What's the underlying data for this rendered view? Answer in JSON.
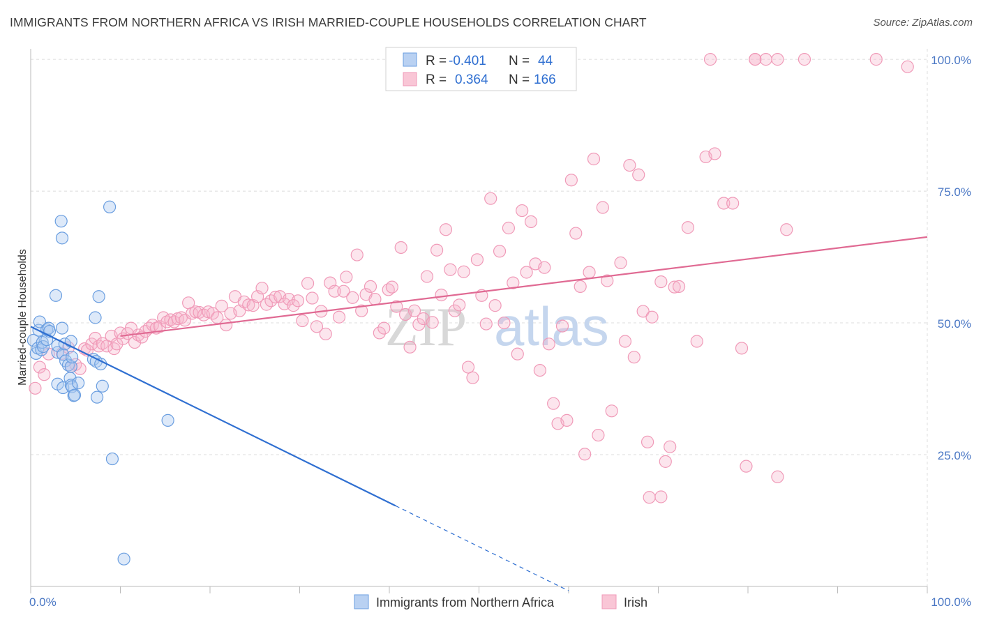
{
  "title": "IMMIGRANTS FROM NORTHERN AFRICA VS IRISH MARRIED-COUPLE HOUSEHOLDS CORRELATION CHART",
  "source": "Source: ZipAtlas.com",
  "watermark": {
    "zip": "ZIP",
    "atlas": "atlas"
  },
  "colors": {
    "blue": "#6a9ee0",
    "blue_line": "#2f6fd1",
    "pink": "#f09ab8",
    "pink_line": "#e06a93",
    "tick": "#4a77c4"
  },
  "stats": [
    {
      "r_label": "R =",
      "r_value": "-0.401",
      "n_label": "N =",
      "n_value": "44"
    },
    {
      "r_label": "R =",
      "r_value": "0.364",
      "n_label": "N =",
      "n_value": "166"
    }
  ],
  "chart_data": {
    "type": "scatter",
    "title": "IMMIGRANTS FROM NORTHERN AFRICA VS IRISH MARRIED-COUPLE HOUSEHOLDS CORRELATION CHART",
    "xlabel": "",
    "ylabel": "Married-couple Households",
    "xlim": [
      0,
      100
    ],
    "ylim": [
      0,
      102
    ],
    "x_tick_labels": [
      "0.0%",
      "100.0%"
    ],
    "y_ticks": [
      25,
      50,
      75,
      100
    ],
    "y_tick_labels": [
      "25.0%",
      "50.0%",
      "75.0%",
      "100.0%"
    ],
    "grid": true,
    "legend_position": "bottom",
    "series": [
      {
        "name": "Immigrants from Northern Africa",
        "color": "#6a9ee0",
        "trend": {
          "x0": 0,
          "y0": 49.3,
          "x1": 40.7,
          "y1": 15.3,
          "dashed_to_x": 60
        },
        "points": [
          [
            0.3,
            46.7
          ],
          [
            0.6,
            44.2
          ],
          [
            0.8,
            45.2
          ],
          [
            0.9,
            48.6
          ],
          [
            1.0,
            50.2
          ],
          [
            1.2,
            44.9
          ],
          [
            1.3,
            46.3
          ],
          [
            1.4,
            45.5
          ],
          [
            1.8,
            46.8
          ],
          [
            1.8,
            48.7
          ],
          [
            2.0,
            49.0
          ],
          [
            2.1,
            48.4
          ],
          [
            2.8,
            55.2
          ],
          [
            3.0,
            38.4
          ],
          [
            3.0,
            44.4
          ],
          [
            3.0,
            45.7
          ],
          [
            3.5,
            49.0
          ],
          [
            3.6,
            37.7
          ],
          [
            3.6,
            44.0
          ],
          [
            3.8,
            46.0
          ],
          [
            3.9,
            42.8
          ],
          [
            3.4,
            69.3
          ],
          [
            3.5,
            66.1
          ],
          [
            4.2,
            42.0
          ],
          [
            4.4,
            39.5
          ],
          [
            4.5,
            38.2
          ],
          [
            4.5,
            41.7
          ],
          [
            4.5,
            46.5
          ],
          [
            4.6,
            37.9
          ],
          [
            4.6,
            43.5
          ],
          [
            4.8,
            36.2
          ],
          [
            4.9,
            36.3
          ],
          [
            5.3,
            38.6
          ],
          [
            7.0,
            43.1
          ],
          [
            7.2,
            51.0
          ],
          [
            7.3,
            42.7
          ],
          [
            7.4,
            35.9
          ],
          [
            7.6,
            55.0
          ],
          [
            7.8,
            42.2
          ],
          [
            8.0,
            38.0
          ],
          [
            8.8,
            72.0
          ],
          [
            9.1,
            24.2
          ],
          [
            10.4,
            5.2
          ],
          [
            15.3,
            31.5
          ]
        ],
        "trend_note": ""
      },
      {
        "name": "Irish",
        "color": "#f09ab8",
        "trend": {
          "x0": 10,
          "y0": 47.5,
          "x1": 100,
          "y1": 66.3
        },
        "points": [
          [
            0.5,
            37.6
          ],
          [
            1.0,
            41.6
          ],
          [
            1.5,
            40.2
          ],
          [
            2.0,
            44.1
          ],
          [
            3.5,
            44.2
          ],
          [
            4.2,
            45.3
          ],
          [
            4.5,
            41.7
          ],
          [
            5.0,
            42.1
          ],
          [
            5.5,
            41.3
          ],
          [
            6.0,
            45.1
          ],
          [
            6.3,
            44.8
          ],
          [
            6.8,
            46.0
          ],
          [
            7.2,
            47.1
          ],
          [
            7.6,
            45.6
          ],
          [
            8.0,
            46.1
          ],
          [
            8.5,
            45.6
          ],
          [
            9.0,
            47.5
          ],
          [
            9.3,
            45.1
          ],
          [
            9.6,
            46.0
          ],
          [
            10.0,
            48.1
          ],
          [
            10.3,
            47.0
          ],
          [
            10.8,
            48.0
          ],
          [
            11.2,
            49.0
          ],
          [
            11.6,
            46.3
          ],
          [
            12.0,
            47.7
          ],
          [
            12.4,
            47.3
          ],
          [
            12.8,
            48.4
          ],
          [
            13.2,
            49.0
          ],
          [
            13.6,
            49.6
          ],
          [
            14.0,
            49.0
          ],
          [
            14.4,
            49.3
          ],
          [
            14.8,
            51.0
          ],
          [
            15.2,
            50.2
          ],
          [
            15.6,
            50.6
          ],
          [
            16.0,
            50.2
          ],
          [
            16.4,
            50.8
          ],
          [
            16.8,
            51.0
          ],
          [
            17.2,
            50.5
          ],
          [
            17.6,
            53.8
          ],
          [
            18.0,
            51.8
          ],
          [
            18.4,
            52.1
          ],
          [
            18.8,
            52.0
          ],
          [
            19.3,
            51.5
          ],
          [
            19.8,
            52.1
          ],
          [
            20.3,
            51.8
          ],
          [
            20.8,
            51.0
          ],
          [
            21.3,
            53.2
          ],
          [
            21.8,
            49.6
          ],
          [
            22.3,
            51.8
          ],
          [
            22.8,
            55.0
          ],
          [
            23.3,
            52.3
          ],
          [
            23.8,
            54.0
          ],
          [
            24.3,
            53.4
          ],
          [
            24.8,
            53.3
          ],
          [
            25.3,
            55.0
          ],
          [
            25.8,
            56.6
          ],
          [
            26.3,
            53.5
          ],
          [
            26.8,
            54.2
          ],
          [
            27.3,
            54.9
          ],
          [
            27.8,
            55.0
          ],
          [
            28.3,
            53.6
          ],
          [
            28.8,
            54.5
          ],
          [
            29.3,
            53.3
          ],
          [
            29.8,
            54.2
          ],
          [
            30.3,
            50.4
          ],
          [
            30.9,
            57.5
          ],
          [
            31.4,
            54.7
          ],
          [
            31.9,
            49.3
          ],
          [
            32.4,
            52.2
          ],
          [
            32.9,
            47.9
          ],
          [
            33.4,
            57.6
          ],
          [
            33.9,
            56.0
          ],
          [
            34.4,
            51.1
          ],
          [
            34.9,
            56.0
          ],
          [
            35.2,
            58.7
          ],
          [
            35.9,
            54.8
          ],
          [
            36.4,
            62.9
          ],
          [
            36.9,
            52.3
          ],
          [
            37.4,
            55.4
          ],
          [
            37.9,
            56.9
          ],
          [
            38.4,
            54.5
          ],
          [
            38.9,
            48.1
          ],
          [
            39.4,
            49.0
          ],
          [
            39.9,
            56.3
          ],
          [
            40.3,
            56.8
          ],
          [
            40.8,
            53.1
          ],
          [
            41.3,
            64.3
          ],
          [
            41.8,
            51.6
          ],
          [
            42.3,
            45.4
          ],
          [
            42.8,
            52.3
          ],
          [
            43.3,
            49.7
          ],
          [
            43.8,
            50.8
          ],
          [
            44.2,
            58.8
          ],
          [
            44.8,
            50.1
          ],
          [
            45.3,
            63.8
          ],
          [
            45.8,
            55.3
          ],
          [
            46.3,
            67.7
          ],
          [
            46.8,
            60.1
          ],
          [
            47.3,
            52.3
          ],
          [
            47.8,
            53.4
          ],
          [
            48.3,
            59.7
          ],
          [
            48.8,
            41.6
          ],
          [
            49.3,
            39.6
          ],
          [
            49.8,
            62.0
          ],
          [
            50.3,
            55.2
          ],
          [
            50.8,
            49.8
          ],
          [
            51.3,
            73.6
          ],
          [
            51.8,
            53.3
          ],
          [
            52.3,
            63.6
          ],
          [
            52.8,
            50.0
          ],
          [
            53.3,
            68.0
          ],
          [
            53.8,
            57.6
          ],
          [
            54.3,
            44.1
          ],
          [
            54.8,
            71.3
          ],
          [
            55.3,
            59.6
          ],
          [
            55.8,
            69.2
          ],
          [
            56.3,
            61.2
          ],
          [
            56.8,
            41.0
          ],
          [
            57.3,
            60.5
          ],
          [
            57.8,
            46.0
          ],
          [
            58.3,
            34.7
          ],
          [
            58.8,
            30.9
          ],
          [
            59.3,
            49.4
          ],
          [
            59.8,
            31.5
          ],
          [
            60.3,
            77.1
          ],
          [
            60.8,
            67.0
          ],
          [
            61.3,
            56.9
          ],
          [
            61.8,
            25.1
          ],
          [
            62.3,
            59.6
          ],
          [
            62.8,
            81.1
          ],
          [
            63.3,
            28.7
          ],
          [
            63.8,
            71.9
          ],
          [
            64.3,
            58.0
          ],
          [
            64.8,
            33.3
          ],
          [
            65.8,
            61.4
          ],
          [
            66.3,
            46.5
          ],
          [
            66.8,
            79.9
          ],
          [
            67.3,
            43.5
          ],
          [
            67.8,
            78.1
          ],
          [
            68.3,
            52.2
          ],
          [
            68.8,
            27.4
          ],
          [
            69.3,
            51.1
          ],
          [
            70.3,
            57.8
          ],
          [
            70.8,
            23.7
          ],
          [
            71.3,
            26.5
          ],
          [
            71.8,
            56.8
          ],
          [
            72.3,
            56.9
          ],
          [
            73.3,
            68.1
          ],
          [
            74.3,
            46.5
          ],
          [
            75.3,
            81.5
          ],
          [
            76.3,
            82.1
          ],
          [
            77.3,
            72.7
          ],
          [
            78.3,
            72.7
          ],
          [
            79.3,
            45.2
          ],
          [
            79.8,
            22.8
          ],
          [
            83.3,
            20.8
          ],
          [
            84.3,
            67.7
          ],
          [
            75.8,
            100.0
          ],
          [
            80.8,
            100.0
          ],
          [
            82.0,
            100.0
          ],
          [
            83.3,
            100.0
          ],
          [
            86.3,
            100.0
          ],
          [
            94.3,
            100.0
          ],
          [
            97.8,
            98.6
          ],
          [
            70.3,
            17.0
          ],
          [
            80.8,
            100.0
          ],
          [
            69.0,
            16.9
          ]
        ]
      }
    ]
  },
  "legend": [
    {
      "label": "Immigrants from Northern Africa"
    },
    {
      "label": "Irish"
    }
  ]
}
